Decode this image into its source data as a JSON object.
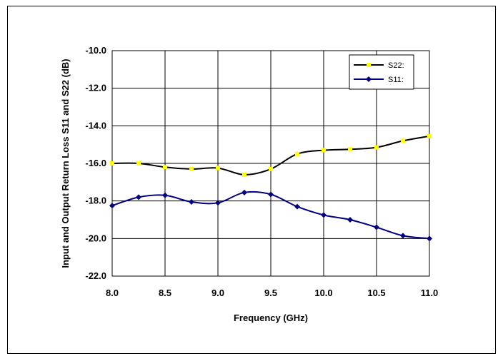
{
  "chart_data": {
    "type": "line",
    "xlabel": "Frequency (GHz)",
    "ylabel": "Input and Output Return Loss S11 and S22 (dB)",
    "xlim": [
      8.0,
      11.0
    ],
    "ylim": [
      -22.0,
      -10.0
    ],
    "x_ticks": [
      "8.0",
      "8.5",
      "9.0",
      "9.5",
      "10.0",
      "10.5",
      "11.0"
    ],
    "y_ticks": [
      "-10.0",
      "-12.0",
      "-14.0",
      "-16.0",
      "-18.0",
      "-20.0",
      "-22.0"
    ],
    "grid": true,
    "legend_position": "top-right",
    "series": [
      {
        "name": "S22:",
        "color": "#000000",
        "marker_color": "#FFFF00",
        "marker": "square",
        "x": [
          8.0,
          8.25,
          8.5,
          8.75,
          9.0,
          9.25,
          9.5,
          9.75,
          10.0,
          10.25,
          10.5,
          10.75,
          11.0
        ],
        "values": [
          -16.0,
          -16.0,
          -16.2,
          -16.3,
          -16.25,
          -16.6,
          -16.3,
          -15.5,
          -15.3,
          -15.25,
          -15.15,
          -14.8,
          -14.55
        ]
      },
      {
        "name": "S11:",
        "color": "#000080",
        "marker_color": "#000080",
        "marker": "diamond",
        "x": [
          8.0,
          8.25,
          8.5,
          8.75,
          9.0,
          9.25,
          9.5,
          9.75,
          10.0,
          10.25,
          10.5,
          10.75,
          11.0
        ],
        "values": [
          -18.25,
          -17.8,
          -17.7,
          -18.05,
          -18.1,
          -17.55,
          -17.65,
          -18.3,
          -18.75,
          -19.0,
          -19.4,
          -19.85,
          -20.0
        ]
      }
    ]
  }
}
